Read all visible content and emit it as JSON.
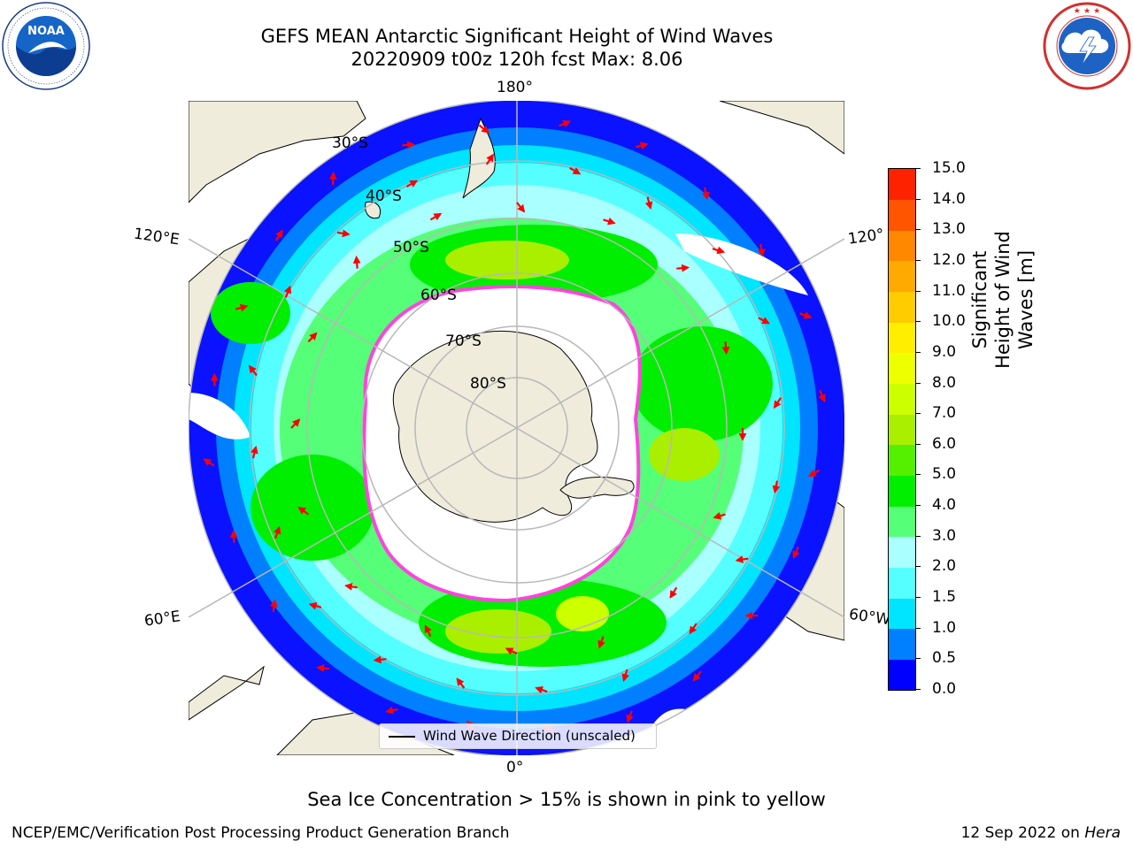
{
  "header": {
    "title_line1": "GEFS MEAN Antarctic Significant Height of Wind Waves",
    "title_line2": "20220909 t00z 120h fcst   Max: 8.06"
  },
  "logos": {
    "left": {
      "text": "NOAA",
      "ring_text": "NATIONAL OCEANIC AND ATMOSPHERIC ADMINISTRATION · U.S. DEPARTMENT OF COMMERCE"
    },
    "right": {
      "ring_text": "NATIONAL WEATHER SERVICE"
    }
  },
  "map": {
    "longitude_labels": [
      "180°",
      "120°E",
      "120°",
      "60°E",
      "60°W",
      "0°"
    ],
    "latitude_labels": [
      "30°S",
      "40°S",
      "50°S",
      "60°S",
      "70°S",
      "80°S"
    ],
    "legend_label": "Wind Wave Direction (unscaled)",
    "colors": {
      "land": "#efecdc",
      "ocean_none": "#ffffff",
      "sea_ice": "#ff44dd",
      "arrow": "#ff0000",
      "grid": "#b8b8b8"
    }
  },
  "colorbar": {
    "title": "Significant Height of Wind Waves [m]",
    "ticks": [
      "15.0",
      "14.0",
      "13.0",
      "12.0",
      "11.0",
      "10.0",
      "9.0",
      "8.0",
      "7.0",
      "6.0",
      "5.0",
      "4.0",
      "3.0",
      "2.0",
      "1.5",
      "1.0",
      "0.5",
      "0.0"
    ],
    "colors": [
      "#0000ff",
      "#0080ff",
      "#00e5ff",
      "#55ffff",
      "#aaffff",
      "#55ff77",
      "#00ee00",
      "#55f000",
      "#aaee00",
      "#ccff00",
      "#eeff00",
      "#ffee00",
      "#ffcc00",
      "#ffaa00",
      "#ff8800",
      "#ff5500",
      "#ff2200"
    ]
  },
  "note": "Sea Ice Concentration > 15% is shown in pink to yellow",
  "footer": {
    "left": "NCEP/EMC/Verification Post Processing Product Generation Branch",
    "right_prefix": "12 Sep 2022 on ",
    "right_machine": "Hera"
  }
}
